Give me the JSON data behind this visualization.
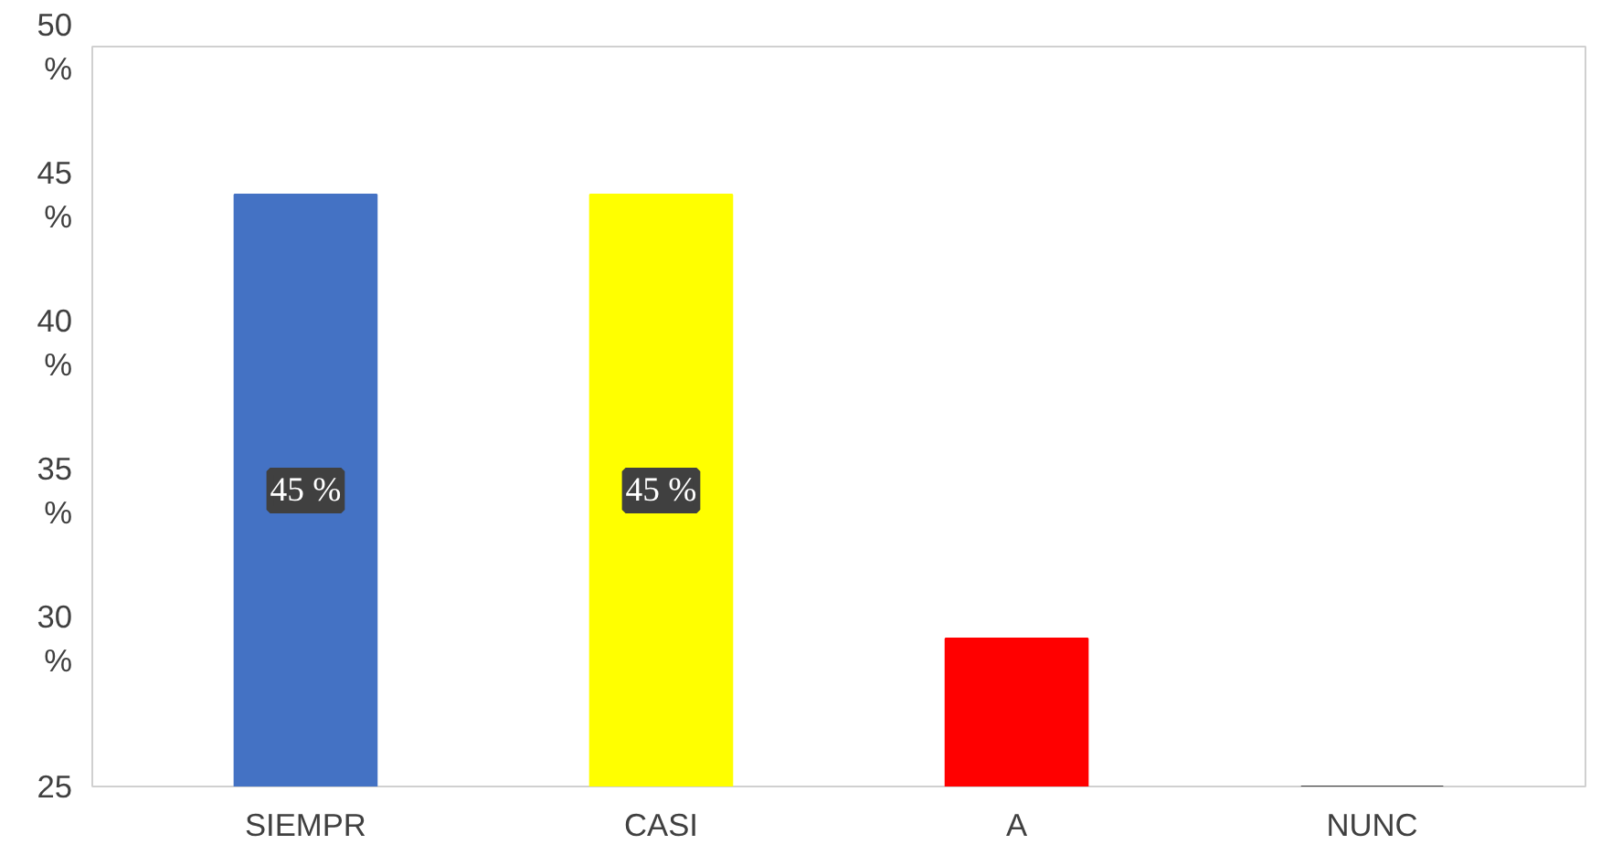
{
  "chart_data": {
    "type": "bar",
    "categories": [
      "SIEMPR",
      "CASI",
      "A",
      "NUNC"
    ],
    "values": [
      45,
      45,
      30,
      25
    ],
    "colors": [
      "#4472c4",
      "#ffff00",
      "#ff0000",
      "#404040"
    ],
    "value_labels": [
      "45 %",
      "45 %",
      null,
      null
    ],
    "ylim": [
      25,
      50
    ],
    "yticks": [
      {
        "value": 25,
        "label": "25"
      },
      {
        "value": 30,
        "label": "30 %"
      },
      {
        "value": 35,
        "label": "35 %"
      },
      {
        "value": 40,
        "label": "40 %"
      },
      {
        "value": 45,
        "label": "45 %"
      },
      {
        "value": 50,
        "label": "50 %"
      }
    ],
    "grid": false
  }
}
